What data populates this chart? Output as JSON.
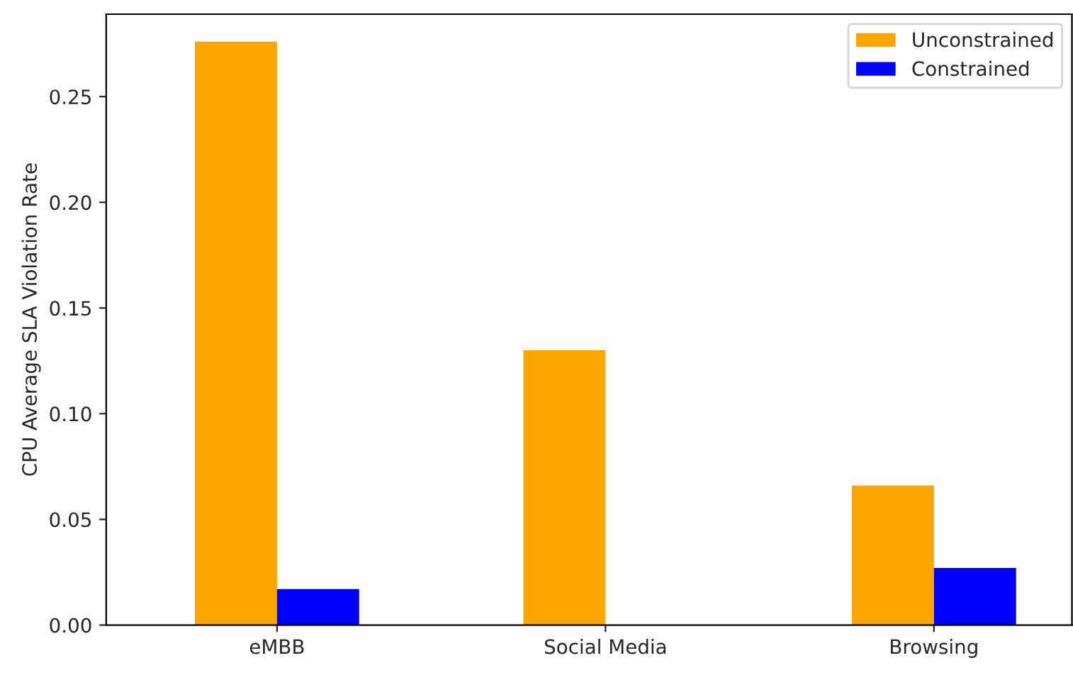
{
  "chart_data": {
    "type": "bar",
    "ylabel": "CPU Average SLA Violation Rate",
    "categories": [
      "eMBB",
      "Social Media",
      "Browsing"
    ],
    "series": [
      {
        "name": "Unconstrained",
        "color": "#ffa500",
        "values": [
          0.276,
          0.13,
          0.066
        ]
      },
      {
        "name": "Constrained",
        "color": "#0000ff",
        "values": [
          0.017,
          0,
          0.027
        ]
      }
    ],
    "ylim": [
      0,
      0.289
    ],
    "yticks": [
      {
        "value": 0,
        "label": "0.00"
      },
      {
        "value": 0.05,
        "label": "0.05"
      },
      {
        "value": 0.1,
        "label": "0.10"
      },
      {
        "value": 0.15,
        "label": "0.15"
      },
      {
        "value": 0.2,
        "label": "0.20"
      },
      {
        "value": 0.25,
        "label": "0.25"
      }
    ],
    "legend": "top right",
    "grid": false
  }
}
